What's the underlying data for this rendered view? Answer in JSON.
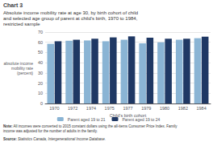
{
  "chart_data": {
    "type": "bar",
    "title": "Chart 3",
    "subtitle": "Absolute income mobility rate at age 30, by birth cohort of child\nand selected age group of parent at child’s birth, 1970 to 1984,\nrestricted sample",
    "xlabel": "Child's birth cohort",
    "ylabel": "absolute income\nmobility rate\n(percent)",
    "categories": [
      "1970",
      "1972",
      "1974",
      "1975",
      "1977",
      "1979",
      "1980",
      "1982",
      "1984"
    ],
    "series": [
      {
        "name": "Parent aged 19 to 21",
        "color": "#8ab4d4",
        "values": [
          58.5,
          61.5,
          61.8,
          61.0,
          62.5,
          59.0,
          60.0,
          62.5,
          64.0
        ]
      },
      {
        "name": "Parent aged 19 to 24",
        "color": "#1f3864",
        "values": [
          61.0,
          62.5,
          63.5,
          64.8,
          65.8,
          64.5,
          63.5,
          63.5,
          65.5
        ]
      }
    ],
    "ylim": [
      0,
      70
    ],
    "yticks": [
      0,
      10,
      20,
      30,
      40,
      50,
      60,
      70
    ],
    "grid": true,
    "legend": "bottom",
    "annotations": [
      "Note: All incomes were converted to 2015 constant dollars using the all-items Consumer Price Index. Family\nincome was adjusted for the number of adults in the family.",
      "Source: Statistics Canada, Intergenerational Income Database."
    ]
  }
}
